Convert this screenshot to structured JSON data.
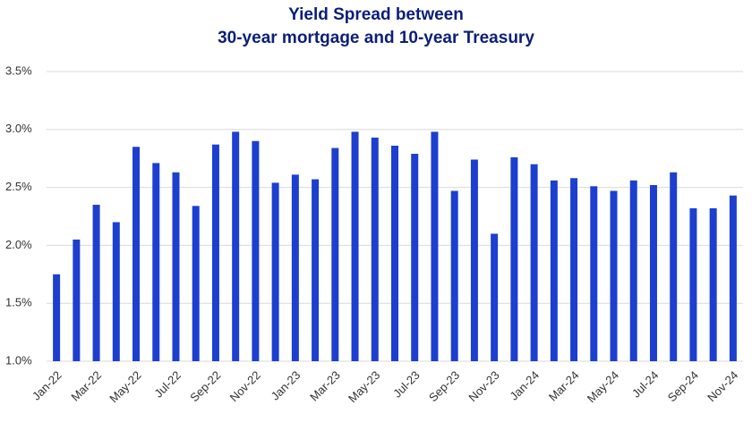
{
  "chart_data": {
    "type": "bar",
    "title": [
      "Yield Spread between",
      "30-year mortgage and 10-year Treasury"
    ],
    "categories": [
      "Jan-22",
      null,
      "Mar-22",
      null,
      "May-22",
      null,
      "Jul-22",
      null,
      "Sep-22",
      null,
      "Nov-22",
      null,
      "Jan-23",
      null,
      "Mar-23",
      null,
      "May-23",
      null,
      "Jul-23",
      null,
      "Sep-23",
      null,
      "Nov-23",
      null,
      "Jan-24",
      null,
      "Mar-24",
      null,
      "May-24",
      null,
      "Jul-24",
      null,
      "Sep-24",
      null,
      "Nov-24"
    ],
    "values": [
      1.75,
      2.05,
      2.35,
      2.2,
      2.85,
      2.71,
      2.63,
      2.34,
      2.87,
      2.98,
      2.9,
      2.54,
      2.61,
      2.57,
      2.84,
      2.98,
      2.93,
      2.86,
      2.79,
      2.98,
      2.47,
      2.74,
      2.1,
      2.76,
      2.7,
      2.56,
      2.58,
      2.51,
      2.47,
      2.56,
      2.52,
      2.63,
      2.32,
      2.32,
      2.43
    ],
    "color": "#1c3fd0",
    "ylim": [
      1.0,
      3.5
    ],
    "yticks": [
      {
        "value": 1.0,
        "label": "1.0%"
      },
      {
        "value": 1.5,
        "label": "1.5%"
      },
      {
        "value": 2.0,
        "label": "2.0%"
      },
      {
        "value": 2.5,
        "label": "2.5%"
      },
      {
        "value": 3.0,
        "label": "3.0%"
      },
      {
        "value": 3.5,
        "label": "3.5%"
      }
    ],
    "grid": true
  }
}
